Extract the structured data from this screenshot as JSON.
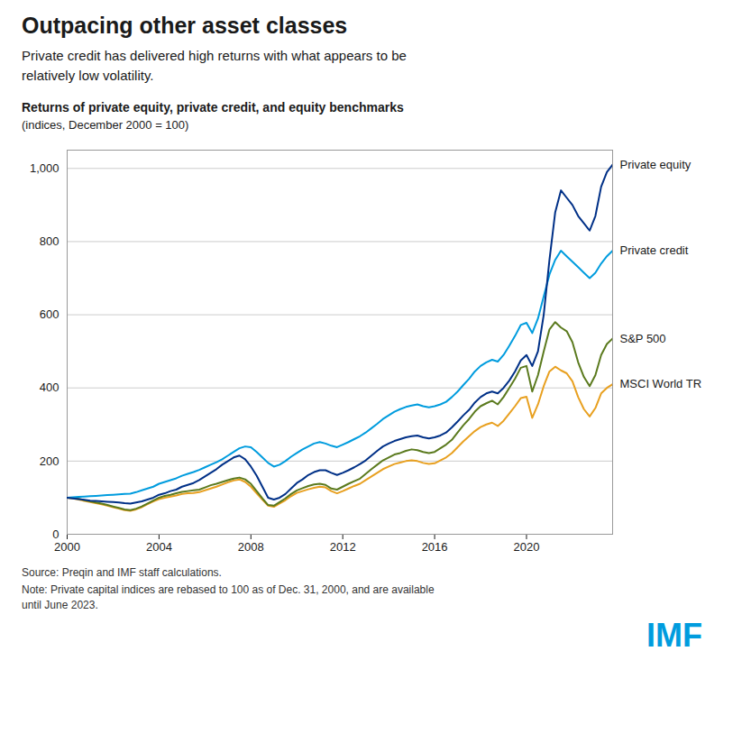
{
  "chart_data": {
    "type": "line",
    "title": "Outpacing other asset classes",
    "subtitle": "Private credit has delivered high returns with what appears to be\nrelatively low volatility.",
    "chart_title": "Returns of private equity, private credit, and equity benchmarks",
    "chart_subtitle": "(indices, December 2000 = 100)",
    "source": "Source: Preqin and IMF staff calculations.",
    "note": "Note: Private capital indices are rebased to 100 as of Dec. 31, 2000, and are available\nuntil June 2023.",
    "logo": "IMF",
    "xlim": [
      2000,
      2023.75
    ],
    "xticks": [
      2000,
      2004,
      2008,
      2012,
      2016,
      2020
    ],
    "ylim": [
      0,
      1050
    ],
    "yticks": [
      0,
      200,
      400,
      600,
      800,
      {
        "value": 1000,
        "label": "1,000"
      }
    ],
    "grid": true,
    "x": [
      2000.0,
      2000.25,
      2000.5,
      2000.75,
      2001.0,
      2001.25,
      2001.5,
      2001.75,
      2002.0,
      2002.25,
      2002.5,
      2002.75,
      2003.0,
      2003.25,
      2003.5,
      2003.75,
      2004.0,
      2004.25,
      2004.5,
      2004.75,
      2005.0,
      2005.25,
      2005.5,
      2005.75,
      2006.0,
      2006.25,
      2006.5,
      2006.75,
      2007.0,
      2007.25,
      2007.5,
      2007.75,
      2008.0,
      2008.25,
      2008.5,
      2008.75,
      2009.0,
      2009.25,
      2009.5,
      2009.75,
      2010.0,
      2010.25,
      2010.5,
      2010.75,
      2011.0,
      2011.25,
      2011.5,
      2011.75,
      2012.0,
      2012.25,
      2012.5,
      2012.75,
      2013.0,
      2013.25,
      2013.5,
      2013.75,
      2014.0,
      2014.25,
      2014.5,
      2014.75,
      2015.0,
      2015.25,
      2015.5,
      2015.75,
      2016.0,
      2016.25,
      2016.5,
      2016.75,
      2017.0,
      2017.25,
      2017.5,
      2017.75,
      2018.0,
      2018.25,
      2018.5,
      2018.75,
      2019.0,
      2019.25,
      2019.5,
      2019.75,
      2020.0,
      2020.25,
      2020.5,
      2020.75,
      2021.0,
      2021.25,
      2021.5,
      2021.75,
      2022.0,
      2022.25,
      2022.5,
      2022.75,
      2023.0,
      2023.25,
      2023.5,
      2023.75
    ],
    "series": [
      {
        "name": "Private equity",
        "color": "#003087",
        "values": [
          100,
          98,
          96,
          94,
          92,
          91,
          90,
          89,
          88,
          87,
          85,
          84,
          87,
          90,
          95,
          100,
          108,
          112,
          118,
          122,
          130,
          135,
          140,
          148,
          158,
          168,
          178,
          190,
          200,
          210,
          215,
          205,
          185,
          160,
          130,
          100,
          95,
          100,
          110,
          125,
          140,
          150,
          162,
          170,
          175,
          175,
          168,
          162,
          168,
          175,
          183,
          192,
          202,
          215,
          228,
          240,
          248,
          255,
          260,
          265,
          268,
          270,
          265,
          262,
          265,
          270,
          278,
          292,
          308,
          325,
          340,
          360,
          375,
          385,
          390,
          385,
          400,
          420,
          445,
          475,
          490,
          460,
          500,
          600,
          750,
          880,
          940,
          920,
          900,
          870,
          850,
          830,
          870,
          950,
          990,
          1010
        ]
      },
      {
        "name": "Private credit",
        "color": "#009CDE",
        "values": [
          100,
          101,
          102,
          103,
          104,
          105,
          106,
          107,
          108,
          109,
          110,
          111,
          115,
          120,
          125,
          130,
          138,
          143,
          148,
          153,
          160,
          165,
          170,
          176,
          183,
          190,
          197,
          205,
          215,
          225,
          235,
          240,
          238,
          225,
          210,
          195,
          185,
          190,
          200,
          212,
          222,
          232,
          240,
          248,
          252,
          248,
          242,
          238,
          245,
          252,
          260,
          268,
          278,
          290,
          302,
          315,
          325,
          335,
          342,
          348,
          352,
          355,
          350,
          347,
          350,
          355,
          362,
          375,
          390,
          408,
          425,
          445,
          460,
          470,
          477,
          472,
          490,
          515,
          542,
          572,
          578,
          550,
          590,
          650,
          710,
          750,
          775,
          760,
          745,
          730,
          715,
          700,
          715,
          740,
          760,
          775
        ]
      },
      {
        "name": "S&P 500",
        "color": "#5B7A1E",
        "values": [
          100,
          99,
          97,
          93,
          90,
          87,
          84,
          80,
          76,
          72,
          68,
          66,
          70,
          76,
          84,
          92,
          100,
          105,
          108,
          112,
          116,
          118,
          120,
          122,
          128,
          134,
          138,
          143,
          148,
          152,
          155,
          150,
          138,
          118,
          98,
          80,
          78,
          88,
          98,
          110,
          120,
          126,
          132,
          136,
          138,
          135,
          125,
          122,
          130,
          138,
          145,
          152,
          165,
          178,
          190,
          202,
          210,
          218,
          222,
          228,
          232,
          230,
          225,
          222,
          225,
          235,
          245,
          258,
          278,
          298,
          315,
          335,
          350,
          358,
          365,
          355,
          375,
          400,
          425,
          455,
          460,
          390,
          435,
          500,
          560,
          580,
          565,
          555,
          525,
          470,
          430,
          405,
          435,
          490,
          520,
          535
        ]
      },
      {
        "name": "MSCI World TR",
        "color": "#E8A020",
        "values": [
          100,
          98,
          95,
          91,
          88,
          85,
          82,
          78,
          74,
          70,
          66,
          64,
          68,
          74,
          82,
          90,
          96,
          100,
          103,
          106,
          110,
          112,
          113,
          115,
          120,
          125,
          130,
          136,
          142,
          147,
          150,
          143,
          130,
          112,
          95,
          78,
          75,
          84,
          93,
          104,
          113,
          118,
          123,
          127,
          130,
          128,
          118,
          112,
          118,
          125,
          132,
          138,
          148,
          158,
          168,
          178,
          185,
          192,
          196,
          200,
          202,
          200,
          195,
          192,
          194,
          202,
          210,
          222,
          238,
          254,
          268,
          282,
          293,
          300,
          305,
          296,
          310,
          330,
          350,
          372,
          376,
          318,
          355,
          405,
          445,
          458,
          448,
          440,
          418,
          375,
          342,
          322,
          345,
          385,
          400,
          410
        ]
      }
    ]
  }
}
